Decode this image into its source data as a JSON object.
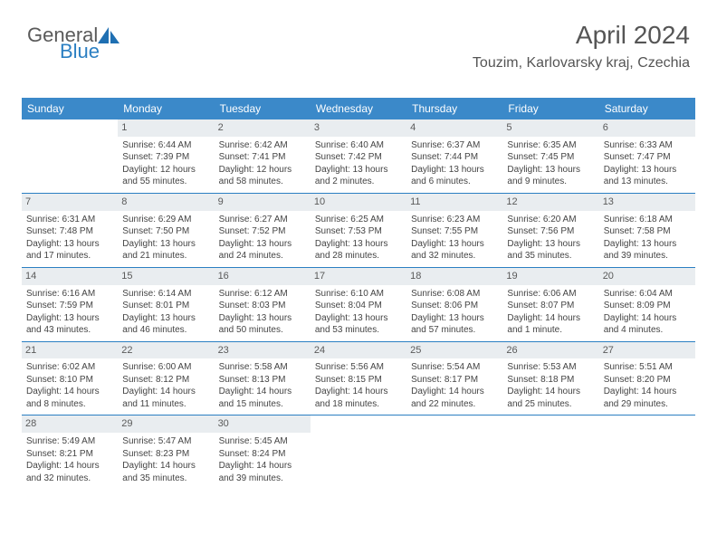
{
  "logo": {
    "word1": "General",
    "word2": "Blue",
    "icon_color": "#1f6fb2"
  },
  "colors": {
    "header_bg": "#3b89c9",
    "header_text": "#ffffff",
    "daynum_bg": "#e9edf0",
    "border": "#2b7fc2",
    "text": "#444444",
    "title": "#555555"
  },
  "title": "April 2024",
  "location": "Touzim, Karlovarsky kraj, Czechia",
  "dow": [
    "Sunday",
    "Monday",
    "Tuesday",
    "Wednesday",
    "Thursday",
    "Friday",
    "Saturday"
  ],
  "calendar": {
    "start_offset": 1,
    "days_in_month": 30,
    "days": {
      "1": {
        "sunrise": "6:44 AM",
        "sunset": "7:39 PM",
        "daylight": "12 hours and 55 minutes."
      },
      "2": {
        "sunrise": "6:42 AM",
        "sunset": "7:41 PM",
        "daylight": "12 hours and 58 minutes."
      },
      "3": {
        "sunrise": "6:40 AM",
        "sunset": "7:42 PM",
        "daylight": "13 hours and 2 minutes."
      },
      "4": {
        "sunrise": "6:37 AM",
        "sunset": "7:44 PM",
        "daylight": "13 hours and 6 minutes."
      },
      "5": {
        "sunrise": "6:35 AM",
        "sunset": "7:45 PM",
        "daylight": "13 hours and 9 minutes."
      },
      "6": {
        "sunrise": "6:33 AM",
        "sunset": "7:47 PM",
        "daylight": "13 hours and 13 minutes."
      },
      "7": {
        "sunrise": "6:31 AM",
        "sunset": "7:48 PM",
        "daylight": "13 hours and 17 minutes."
      },
      "8": {
        "sunrise": "6:29 AM",
        "sunset": "7:50 PM",
        "daylight": "13 hours and 21 minutes."
      },
      "9": {
        "sunrise": "6:27 AM",
        "sunset": "7:52 PM",
        "daylight": "13 hours and 24 minutes."
      },
      "10": {
        "sunrise": "6:25 AM",
        "sunset": "7:53 PM",
        "daylight": "13 hours and 28 minutes."
      },
      "11": {
        "sunrise": "6:23 AM",
        "sunset": "7:55 PM",
        "daylight": "13 hours and 32 minutes."
      },
      "12": {
        "sunrise": "6:20 AM",
        "sunset": "7:56 PM",
        "daylight": "13 hours and 35 minutes."
      },
      "13": {
        "sunrise": "6:18 AM",
        "sunset": "7:58 PM",
        "daylight": "13 hours and 39 minutes."
      },
      "14": {
        "sunrise": "6:16 AM",
        "sunset": "7:59 PM",
        "daylight": "13 hours and 43 minutes."
      },
      "15": {
        "sunrise": "6:14 AM",
        "sunset": "8:01 PM",
        "daylight": "13 hours and 46 minutes."
      },
      "16": {
        "sunrise": "6:12 AM",
        "sunset": "8:03 PM",
        "daylight": "13 hours and 50 minutes."
      },
      "17": {
        "sunrise": "6:10 AM",
        "sunset": "8:04 PM",
        "daylight": "13 hours and 53 minutes."
      },
      "18": {
        "sunrise": "6:08 AM",
        "sunset": "8:06 PM",
        "daylight": "13 hours and 57 minutes."
      },
      "19": {
        "sunrise": "6:06 AM",
        "sunset": "8:07 PM",
        "daylight": "14 hours and 1 minute."
      },
      "20": {
        "sunrise": "6:04 AM",
        "sunset": "8:09 PM",
        "daylight": "14 hours and 4 minutes."
      },
      "21": {
        "sunrise": "6:02 AM",
        "sunset": "8:10 PM",
        "daylight": "14 hours and 8 minutes."
      },
      "22": {
        "sunrise": "6:00 AM",
        "sunset": "8:12 PM",
        "daylight": "14 hours and 11 minutes."
      },
      "23": {
        "sunrise": "5:58 AM",
        "sunset": "8:13 PM",
        "daylight": "14 hours and 15 minutes."
      },
      "24": {
        "sunrise": "5:56 AM",
        "sunset": "8:15 PM",
        "daylight": "14 hours and 18 minutes."
      },
      "25": {
        "sunrise": "5:54 AM",
        "sunset": "8:17 PM",
        "daylight": "14 hours and 22 minutes."
      },
      "26": {
        "sunrise": "5:53 AM",
        "sunset": "8:18 PM",
        "daylight": "14 hours and 25 minutes."
      },
      "27": {
        "sunrise": "5:51 AM",
        "sunset": "8:20 PM",
        "daylight": "14 hours and 29 minutes."
      },
      "28": {
        "sunrise": "5:49 AM",
        "sunset": "8:21 PM",
        "daylight": "14 hours and 32 minutes."
      },
      "29": {
        "sunrise": "5:47 AM",
        "sunset": "8:23 PM",
        "daylight": "14 hours and 35 minutes."
      },
      "30": {
        "sunrise": "5:45 AM",
        "sunset": "8:24 PM",
        "daylight": "14 hours and 39 minutes."
      }
    },
    "labels": {
      "sunrise": "Sunrise:",
      "sunset": "Sunset:",
      "daylight": "Daylight:"
    }
  }
}
